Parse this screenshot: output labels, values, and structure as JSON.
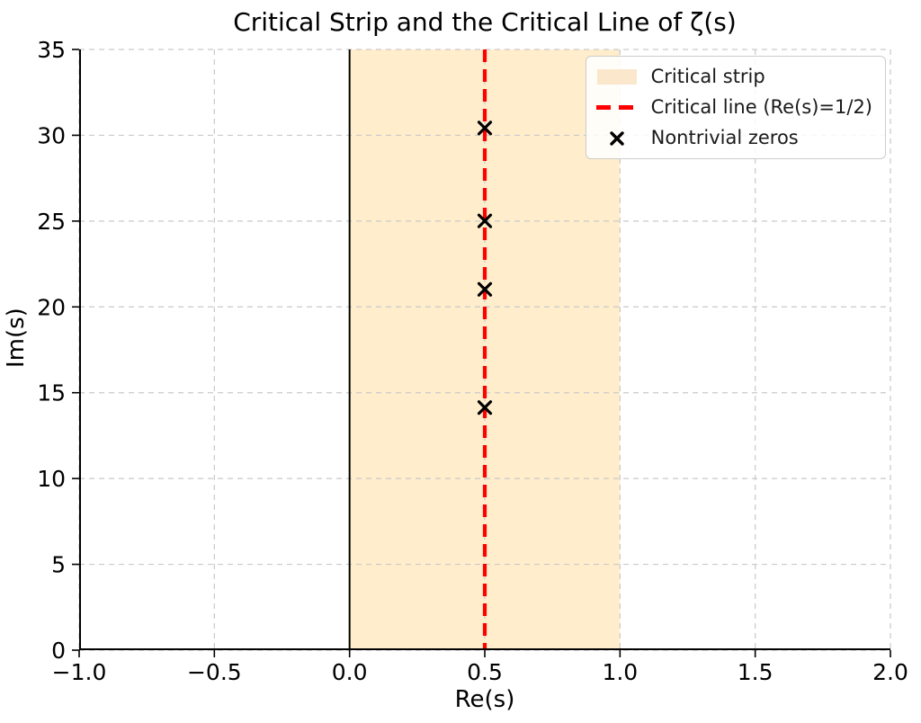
{
  "chart_data": {
    "type": "scatter",
    "title": "Critical Strip and the Critical Line of ζ(s)",
    "xlabel": "Re(s)",
    "ylabel": "Im(s)",
    "xlim": [
      -1.0,
      2.0
    ],
    "ylim": [
      0,
      35
    ],
    "xticks": {
      "values": [
        -1.0,
        -0.5,
        0.0,
        0.5,
        1.0,
        1.5,
        2.0
      ],
      "labels": [
        "−1.0",
        "−0.5",
        "0.0",
        "0.5",
        "1.0",
        "1.5",
        "2.0"
      ]
    },
    "yticks": {
      "values": [
        0,
        5,
        10,
        15,
        20,
        25,
        30,
        35
      ],
      "labels": [
        "0",
        "5",
        "10",
        "15",
        "20",
        "25",
        "30",
        "35"
      ]
    },
    "grid": {
      "on": true,
      "style": "dashed",
      "color": "#c9c9c9"
    },
    "spines": {
      "left": true,
      "bottom": true,
      "top": false,
      "right": false,
      "color": "#000000"
    },
    "regions": [
      {
        "name": "critical-strip",
        "x0": 0,
        "x1": 1,
        "fill": "#ffa500",
        "opacity": 0.2
      }
    ],
    "vlines": [
      {
        "name": "zero-real-axis-line",
        "x": 0,
        "color": "#000000",
        "style": "solid",
        "width": 2
      },
      {
        "name": "critical-line",
        "x": 0.5,
        "color": "#ff0000",
        "style": "dashed",
        "width": 4.2,
        "dash": "14 8"
      }
    ],
    "series": [
      {
        "name": "Nontrivial zeros",
        "marker": "x",
        "color": "#000000",
        "x": [
          0.5,
          0.5,
          0.5,
          0.5
        ],
        "y": [
          14.134725,
          21.02204,
          25.010858,
          30.424876
        ]
      }
    ],
    "legend": {
      "position": "upper right",
      "entries": [
        {
          "label": "Critical strip",
          "swatch": "patch",
          "color": "#fbe7cb"
        },
        {
          "label": "Critical line (Re(s)=1/2)",
          "swatch": "dashed-line",
          "color": "#ff0000"
        },
        {
          "label": "Nontrivial zeros",
          "swatch": "x-marker",
          "color": "#000000"
        }
      ]
    }
  }
}
